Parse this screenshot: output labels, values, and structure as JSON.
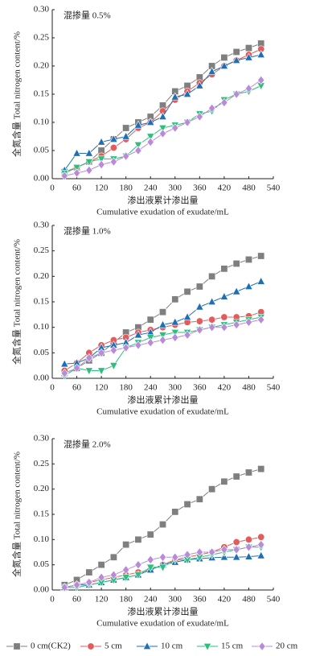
{
  "chart_data": [
    {
      "type": "line",
      "annotation": "混掺量 0.5%",
      "ylabel": "全氮含量 Total nitrogen content/%",
      "xlabel": "渗出液累计渗出量",
      "xlabel_en": "Cumulative exudation of exudate/mL",
      "x": [
        30,
        60,
        90,
        120,
        150,
        180,
        210,
        240,
        270,
        300,
        330,
        360,
        390,
        420,
        450,
        480,
        510
      ],
      "xlim": [
        0,
        540
      ],
      "xticks": [
        0,
        60,
        120,
        180,
        240,
        300,
        360,
        420,
        480,
        540
      ],
      "ylim": [
        0,
        0.3
      ],
      "yticks": [
        {
          "value": 0,
          "label": "0.00"
        },
        {
          "value": 0.05,
          "label": "0.05"
        },
        {
          "value": 0.1,
          "label": "0.10"
        },
        {
          "value": 0.15,
          "label": "0.15"
        },
        {
          "value": 0.2,
          "label": "0.20"
        },
        {
          "value": 0.25,
          "label": "0.25"
        },
        {
          "value": 0.3,
          "label": "0.30"
        }
      ],
      "series": [
        {
          "name": "0 cm(CK2)",
          "color": "#7f7f7f",
          "marker": "square",
          "values": [
            0.012,
            0.02,
            0.03,
            0.05,
            0.07,
            0.09,
            0.1,
            0.11,
            0.13,
            0.155,
            0.165,
            0.18,
            0.2,
            0.215,
            0.225,
            0.232,
            0.24
          ]
        },
        {
          "name": "5 cm",
          "color": "#e35b5b",
          "marker": "circle",
          "values": [
            0.01,
            0.02,
            0.03,
            0.04,
            0.055,
            0.07,
            0.09,
            0.1,
            0.12,
            0.14,
            0.155,
            0.17,
            0.185,
            0.2,
            0.21,
            0.22,
            0.23
          ]
        },
        {
          "name": "10 cm",
          "color": "#1f6fb5",
          "marker": "triangle-up",
          "values": [
            0.015,
            0.045,
            0.045,
            0.065,
            0.07,
            0.075,
            0.095,
            0.1,
            0.11,
            0.145,
            0.15,
            0.165,
            0.19,
            0.2,
            0.21,
            0.215,
            0.22
          ]
        },
        {
          "name": "15 cm",
          "color": "#2ebf7e",
          "marker": "triangle-down",
          "values": [
            0.01,
            0.02,
            0.03,
            0.035,
            0.035,
            0.04,
            0.06,
            0.075,
            0.09,
            0.095,
            0.1,
            0.115,
            0.12,
            0.14,
            0.15,
            0.155,
            0.165
          ]
        },
        {
          "name": "20 cm",
          "color": "#b88ad8",
          "marker": "diamond",
          "values": [
            0.005,
            0.01,
            0.015,
            0.025,
            0.03,
            0.04,
            0.05,
            0.065,
            0.08,
            0.09,
            0.1,
            0.11,
            0.125,
            0.135,
            0.15,
            0.16,
            0.175
          ]
        }
      ]
    },
    {
      "type": "line",
      "annotation": "混掺量 1.0%",
      "ylabel": "全氮含量 Total nitrogen content/%",
      "xlabel": "渗出液累计渗出量",
      "xlabel_en": "Cumulative exudation of exudate/mL",
      "x": [
        30,
        60,
        90,
        120,
        150,
        180,
        210,
        240,
        270,
        300,
        330,
        360,
        390,
        420,
        450,
        480,
        510
      ],
      "xlim": [
        0,
        540
      ],
      "xticks": [
        0,
        60,
        120,
        180,
        240,
        300,
        360,
        420,
        480,
        540
      ],
      "ylim": [
        0,
        0.3
      ],
      "yticks": [
        {
          "value": 0,
          "label": "0.00"
        },
        {
          "value": 0.05,
          "label": "0.05"
        },
        {
          "value": 0.1,
          "label": "0.10"
        },
        {
          "value": 0.15,
          "label": "0.15"
        },
        {
          "value": 0.2,
          "label": "0.20"
        },
        {
          "value": 0.25,
          "label": "0.25"
        },
        {
          "value": 0.3,
          "label": "0.30"
        }
      ],
      "series": [
        {
          "color": "#7f7f7f",
          "marker": "square",
          "values": [
            0.01,
            0.02,
            0.035,
            0.05,
            0.07,
            0.09,
            0.1,
            0.115,
            0.13,
            0.155,
            0.17,
            0.18,
            0.2,
            0.215,
            0.225,
            0.233,
            0.24
          ]
        },
        {
          "color": "#e35b5b",
          "marker": "circle",
          "values": [
            0.015,
            0.03,
            0.05,
            0.065,
            0.075,
            0.08,
            0.09,
            0.095,
            0.1,
            0.105,
            0.11,
            0.112,
            0.115,
            0.12,
            0.12,
            0.122,
            0.13
          ]
        },
        {
          "color": "#1f6fb5",
          "marker": "triangle-up",
          "values": [
            0.028,
            0.03,
            0.04,
            0.06,
            0.065,
            0.07,
            0.085,
            0.09,
            0.105,
            0.11,
            0.12,
            0.14,
            0.15,
            0.16,
            0.17,
            0.18,
            0.19
          ]
        },
        {
          "color": "#2ebf7e",
          "marker": "triangle-down",
          "values": [
            0.005,
            0.02,
            0.015,
            0.015,
            0.025,
            0.06,
            0.07,
            0.08,
            0.085,
            0.09,
            0.09,
            0.095,
            0.1,
            0.105,
            0.11,
            0.115,
            0.12
          ]
        },
        {
          "color": "#b88ad8",
          "marker": "diamond",
          "values": [
            0.01,
            0.02,
            0.04,
            0.05,
            0.055,
            0.06,
            0.065,
            0.07,
            0.075,
            0.08,
            0.085,
            0.095,
            0.1,
            0.1,
            0.105,
            0.11,
            0.115
          ]
        }
      ]
    },
    {
      "type": "line",
      "annotation": "混掺量 2.0%",
      "ylabel": "全氮含量 Total nitrogen content/%",
      "xlabel": "渗出液累计渗出量",
      "xlabel_en": "Cumulative exudation of exudate/mL",
      "x": [
        30,
        60,
        90,
        120,
        150,
        180,
        210,
        240,
        270,
        300,
        330,
        360,
        390,
        420,
        450,
        480,
        510
      ],
      "xlim": [
        0,
        540
      ],
      "xticks": [
        0,
        60,
        120,
        180,
        240,
        300,
        360,
        420,
        480,
        540
      ],
      "ylim": [
        0,
        0.3
      ],
      "yticks": [
        {
          "value": 0,
          "label": "0.00"
        },
        {
          "value": 0.05,
          "label": "0.05"
        },
        {
          "value": 0.1,
          "label": "0.10"
        },
        {
          "value": 0.15,
          "label": "0.15"
        },
        {
          "value": 0.2,
          "label": "0.20"
        },
        {
          "value": 0.25,
          "label": "0.25"
        },
        {
          "value": 0.3,
          "label": "0.30"
        }
      ],
      "series": [
        {
          "color": "#7f7f7f",
          "marker": "square",
          "values": [
            0.01,
            0.02,
            0.035,
            0.05,
            0.065,
            0.09,
            0.1,
            0.11,
            0.13,
            0.155,
            0.17,
            0.18,
            0.2,
            0.215,
            0.225,
            0.233,
            0.24
          ]
        },
        {
          "color": "#e35b5b",
          "marker": "circle",
          "values": [
            0.005,
            0.01,
            0.015,
            0.02,
            0.025,
            0.03,
            0.035,
            0.04,
            0.05,
            0.06,
            0.065,
            0.07,
            0.075,
            0.085,
            0.095,
            0.1,
            0.105
          ]
        },
        {
          "color": "#1f6fb5",
          "marker": "triangle-up",
          "values": [
            0.005,
            0.01,
            0.01,
            0.015,
            0.02,
            0.025,
            0.03,
            0.04,
            0.05,
            0.055,
            0.06,
            0.062,
            0.064,
            0.065,
            0.065,
            0.066,
            0.068
          ]
        },
        {
          "color": "#2ebf7e",
          "marker": "triangle-down",
          "values": [
            0.005,
            0.005,
            0.01,
            0.015,
            0.02,
            0.025,
            0.03,
            0.045,
            0.045,
            0.06,
            0.06,
            0.065,
            0.07,
            0.075,
            0.08,
            0.085,
            0.085
          ]
        },
        {
          "color": "#b88ad8",
          "marker": "diamond",
          "values": [
            0.005,
            0.01,
            0.015,
            0.025,
            0.03,
            0.04,
            0.05,
            0.06,
            0.065,
            0.065,
            0.07,
            0.075,
            0.075,
            0.08,
            0.08,
            0.085,
            0.09
          ]
        }
      ]
    }
  ]
}
